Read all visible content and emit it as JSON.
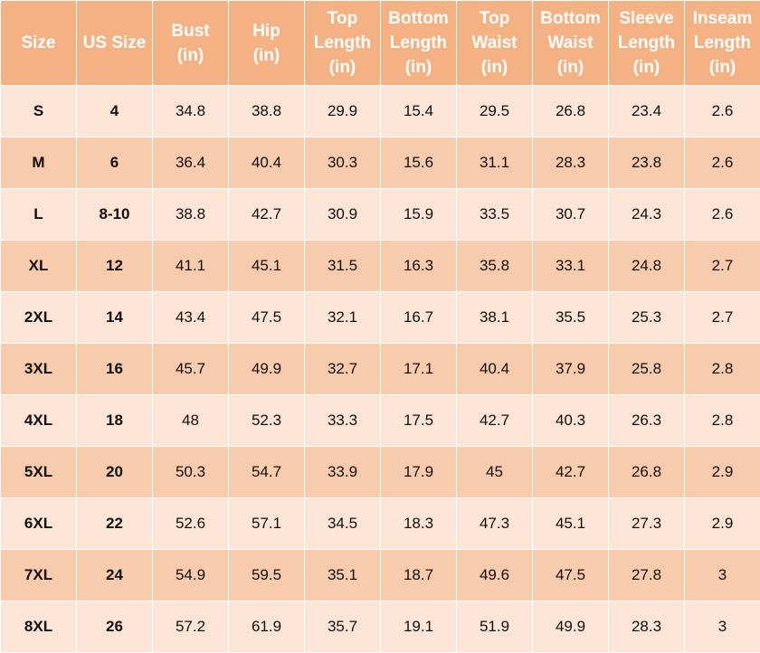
{
  "table": {
    "headers": [
      [
        "Size"
      ],
      [
        "US Size"
      ],
      [
        "Bust",
        "(in)"
      ],
      [
        "Hip",
        "(in)"
      ],
      [
        "Top",
        "Length",
        "(in)"
      ],
      [
        "Bottom",
        "Length",
        "(in)"
      ],
      [
        "Top",
        "Waist",
        "(in)"
      ],
      [
        "Bottom",
        "Waist",
        "(in)"
      ],
      [
        "Sleeve",
        "Length",
        "(in)"
      ],
      [
        "Inseam",
        "Length",
        "(in)"
      ]
    ],
    "rows": [
      [
        "S",
        "4",
        "34.8",
        "38.8",
        "29.9",
        "15.4",
        "29.5",
        "26.8",
        "23.4",
        "2.6"
      ],
      [
        "M",
        "6",
        "36.4",
        "40.4",
        "30.3",
        "15.6",
        "31.1",
        "28.3",
        "23.8",
        "2.6"
      ],
      [
        "L",
        "8-10",
        "38.8",
        "42.7",
        "30.9",
        "15.9",
        "33.5",
        "30.7",
        "24.3",
        "2.6"
      ],
      [
        "XL",
        "12",
        "41.1",
        "45.1",
        "31.5",
        "16.3",
        "35.8",
        "33.1",
        "24.8",
        "2.7"
      ],
      [
        "2XL",
        "14",
        "43.4",
        "47.5",
        "32.1",
        "16.7",
        "38.1",
        "35.5",
        "25.3",
        "2.7"
      ],
      [
        "3XL",
        "16",
        "45.7",
        "49.9",
        "32.7",
        "17.1",
        "40.4",
        "37.9",
        "25.8",
        "2.8"
      ],
      [
        "4XL",
        "18",
        "48",
        "52.3",
        "33.3",
        "17.5",
        "42.7",
        "40.3",
        "26.3",
        "2.8"
      ],
      [
        "5XL",
        "20",
        "50.3",
        "54.7",
        "33.9",
        "17.9",
        "45",
        "42.7",
        "26.8",
        "2.9"
      ],
      [
        "6XL",
        "22",
        "52.6",
        "57.1",
        "34.5",
        "18.3",
        "47.3",
        "45.1",
        "27.3",
        "2.9"
      ],
      [
        "7XL",
        "24",
        "54.9",
        "59.5",
        "35.1",
        "18.7",
        "49.6",
        "47.5",
        "27.8",
        "3"
      ],
      [
        "8XL",
        "26",
        "57.2",
        "61.9",
        "35.7",
        "19.1",
        "51.9",
        "49.9",
        "28.3",
        "3"
      ]
    ]
  },
  "colors": {
    "header_bg": "#f4b183",
    "header_text": "#ffffff",
    "row_light": "#fce4d6",
    "row_dark": "#f8cbad",
    "border": "#ffffff"
  }
}
